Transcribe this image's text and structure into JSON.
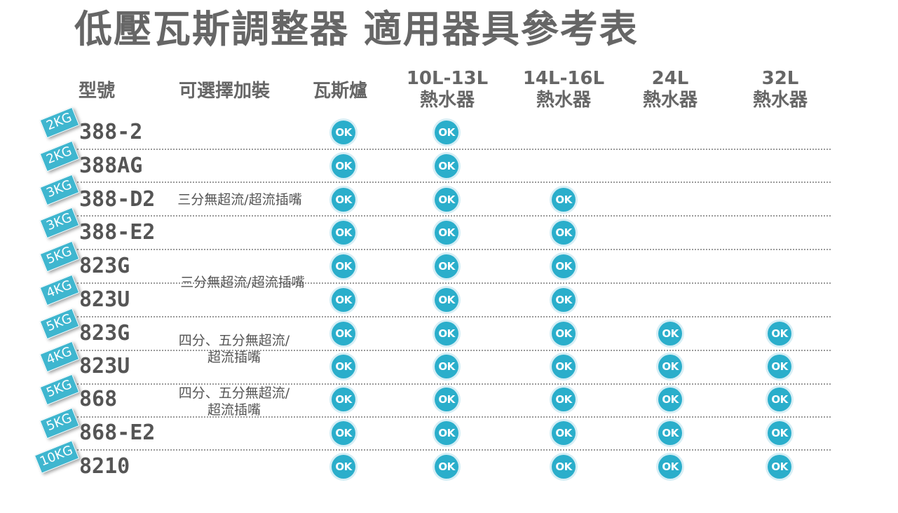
{
  "title": "低壓瓦斯調整器 適用器具參考表",
  "columns": {
    "model": "型號",
    "addon": "可選擇加裝",
    "stove": "瓦斯爐",
    "heater_10_13": [
      "10L-13L",
      "熱水器"
    ],
    "heater_14_16": [
      "14L-16L",
      "熱水器"
    ],
    "heater_24": [
      "24L",
      "熱水器"
    ],
    "heater_32": [
      "32L",
      "熱水器"
    ]
  },
  "ok_label": "OK",
  "rows": [
    {
      "weight": "2KG",
      "model": "388-2",
      "ok": [
        1,
        1,
        0,
        0,
        0
      ]
    },
    {
      "weight": "2KG",
      "model": "388AG",
      "ok": [
        1,
        1,
        0,
        0,
        0
      ]
    },
    {
      "weight": "3KG",
      "model": "388-D2",
      "ok": [
        1,
        1,
        1,
        0,
        0
      ]
    },
    {
      "weight": "3KG",
      "model": "388-E2",
      "ok": [
        1,
        1,
        1,
        0,
        0
      ]
    },
    {
      "weight": "5KG",
      "model": "823G",
      "ok": [
        1,
        1,
        1,
        0,
        0
      ]
    },
    {
      "weight": "4KG",
      "model": "823U",
      "ok": [
        1,
        1,
        1,
        0,
        0
      ]
    },
    {
      "weight": "5KG",
      "model": "823G",
      "ok": [
        1,
        1,
        1,
        1,
        1
      ]
    },
    {
      "weight": "4KG",
      "model": "823U",
      "ok": [
        1,
        1,
        1,
        1,
        1
      ]
    },
    {
      "weight": "5KG",
      "model": "868",
      "ok": [
        1,
        1,
        1,
        1,
        1
      ]
    },
    {
      "weight": "5KG",
      "model": "868-E2",
      "ok": [
        1,
        1,
        1,
        1,
        1
      ]
    },
    {
      "weight": "10KG",
      "model": "8210",
      "ok": [
        1,
        1,
        1,
        1,
        1
      ]
    }
  ],
  "notes": [
    {
      "lines": [
        "三分無超流/超流插嘴"
      ]
    },
    {
      "lines": [
        "三分無超流/超流插嘴"
      ]
    },
    {
      "lines": [
        "四分、五分無超流/",
        "超流插嘴"
      ]
    },
    {
      "lines": [
        "四分、五分無超流/",
        "超流插嘴"
      ]
    }
  ]
}
